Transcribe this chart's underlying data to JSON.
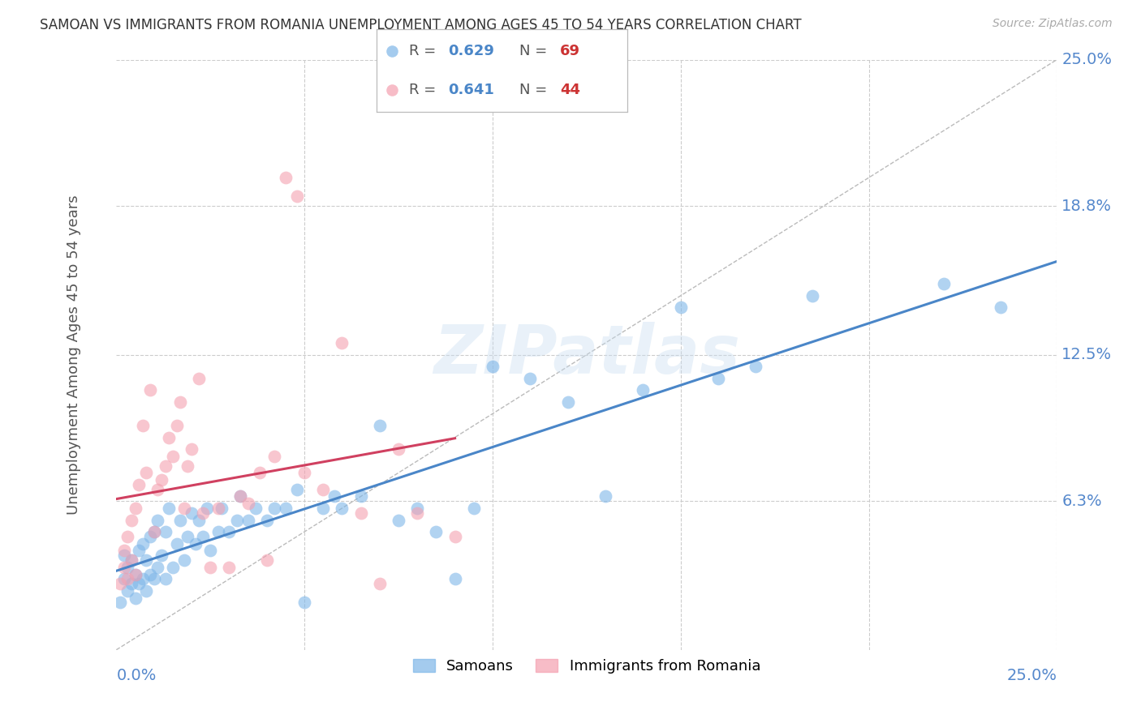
{
  "title": "SAMOAN VS IMMIGRANTS FROM ROMANIA UNEMPLOYMENT AMONG AGES 45 TO 54 YEARS CORRELATION CHART",
  "source": "Source: ZipAtlas.com",
  "ylabel": "Unemployment Among Ages 45 to 54 years",
  "ytick_labels": [
    "25.0%",
    "18.8%",
    "12.5%",
    "6.3%"
  ],
  "ytick_values": [
    0.25,
    0.188,
    0.125,
    0.063
  ],
  "xmin": 0.0,
  "xmax": 0.25,
  "ymin": 0.0,
  "ymax": 0.25,
  "samoans_color": "#7eb6e8",
  "romania_color": "#f4a0b0",
  "trend_samoan_color": "#4a86c8",
  "trend_romania_color": "#d04060",
  "diagonal_color": "#bbbbbb",
  "R_samoan": 0.629,
  "N_samoan": 69,
  "R_romania": 0.641,
  "N_romania": 44,
  "samoans_x": [
    0.001,
    0.002,
    0.002,
    0.003,
    0.003,
    0.004,
    0.004,
    0.005,
    0.005,
    0.006,
    0.006,
    0.007,
    0.007,
    0.008,
    0.008,
    0.009,
    0.009,
    0.01,
    0.01,
    0.011,
    0.011,
    0.012,
    0.013,
    0.013,
    0.014,
    0.015,
    0.016,
    0.017,
    0.018,
    0.019,
    0.02,
    0.021,
    0.022,
    0.023,
    0.024,
    0.025,
    0.027,
    0.028,
    0.03,
    0.032,
    0.033,
    0.035,
    0.037,
    0.04,
    0.042,
    0.045,
    0.048,
    0.05,
    0.055,
    0.058,
    0.06,
    0.065,
    0.07,
    0.075,
    0.08,
    0.085,
    0.09,
    0.095,
    0.1,
    0.11,
    0.12,
    0.13,
    0.14,
    0.15,
    0.16,
    0.17,
    0.185,
    0.22,
    0.235
  ],
  "samoans_y": [
    0.02,
    0.03,
    0.04,
    0.025,
    0.035,
    0.028,
    0.038,
    0.022,
    0.032,
    0.028,
    0.042,
    0.03,
    0.045,
    0.025,
    0.038,
    0.032,
    0.048,
    0.03,
    0.05,
    0.035,
    0.055,
    0.04,
    0.03,
    0.05,
    0.06,
    0.035,
    0.045,
    0.055,
    0.038,
    0.048,
    0.058,
    0.045,
    0.055,
    0.048,
    0.06,
    0.042,
    0.05,
    0.06,
    0.05,
    0.055,
    0.065,
    0.055,
    0.06,
    0.055,
    0.06,
    0.06,
    0.068,
    0.02,
    0.06,
    0.065,
    0.06,
    0.065,
    0.095,
    0.055,
    0.06,
    0.05,
    0.03,
    0.06,
    0.12,
    0.115,
    0.105,
    0.065,
    0.11,
    0.145,
    0.115,
    0.12,
    0.15,
    0.155,
    0.145
  ],
  "romania_x": [
    0.001,
    0.002,
    0.002,
    0.003,
    0.003,
    0.004,
    0.004,
    0.005,
    0.005,
    0.006,
    0.007,
    0.008,
    0.009,
    0.01,
    0.011,
    0.012,
    0.013,
    0.014,
    0.015,
    0.016,
    0.017,
    0.018,
    0.019,
    0.02,
    0.022,
    0.023,
    0.025,
    0.027,
    0.03,
    0.033,
    0.035,
    0.038,
    0.04,
    0.042,
    0.045,
    0.048,
    0.05,
    0.055,
    0.06,
    0.065,
    0.07,
    0.075,
    0.08,
    0.09
  ],
  "romania_y": [
    0.028,
    0.035,
    0.042,
    0.03,
    0.048,
    0.038,
    0.055,
    0.032,
    0.06,
    0.07,
    0.095,
    0.075,
    0.11,
    0.05,
    0.068,
    0.072,
    0.078,
    0.09,
    0.082,
    0.095,
    0.105,
    0.06,
    0.078,
    0.085,
    0.115,
    0.058,
    0.035,
    0.06,
    0.035,
    0.065,
    0.062,
    0.075,
    0.038,
    0.082,
    0.2,
    0.192,
    0.075,
    0.068,
    0.13,
    0.058,
    0.028,
    0.085,
    0.058,
    0.048
  ],
  "watermark": "ZIPatlas",
  "background_color": "#ffffff",
  "grid_color": "#cccccc",
  "trend_samoan_intercept": 0.022,
  "trend_samoan_slope": 0.62,
  "trend_romania_intercept": 0.048,
  "trend_romania_slope": 1.35
}
